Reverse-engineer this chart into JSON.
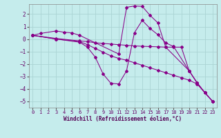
{
  "title": "",
  "xlabel": "Windchill (Refroidissement éolien,°C)",
  "ylabel": "",
  "background_color": "#c5ecec",
  "grid_color": "#aad4d4",
  "line_color": "#880088",
  "xlim": [
    -0.5,
    23.5
  ],
  "ylim": [
    -5.5,
    2.8
  ],
  "xticks": [
    0,
    1,
    2,
    3,
    4,
    5,
    6,
    7,
    8,
    9,
    10,
    11,
    12,
    13,
    14,
    15,
    16,
    17,
    18,
    19,
    20,
    21,
    22,
    23
  ],
  "yticks": [
    -5,
    -4,
    -3,
    -2,
    -1,
    0,
    1,
    2
  ],
  "lines": [
    {
      "x": [
        0,
        1,
        3,
        4,
        5,
        6,
        11,
        12,
        13,
        14,
        15,
        16,
        17,
        20,
        21,
        22,
        23
      ],
      "y": [
        0.3,
        0.45,
        0.65,
        0.55,
        0.5,
        0.3,
        -1.2,
        2.55,
        2.65,
        2.62,
        1.9,
        1.3,
        -0.65,
        -2.55,
        -3.5,
        -4.3,
        -5.0
      ]
    },
    {
      "x": [
        0,
        3,
        6,
        7,
        8,
        9,
        10,
        11,
        12,
        13,
        14,
        15,
        16,
        17,
        18,
        19,
        20,
        21,
        22,
        23
      ],
      "y": [
        0.3,
        0.05,
        -0.15,
        -0.2,
        -0.3,
        -0.35,
        -0.4,
        -0.45,
        -0.5,
        -0.55,
        -0.58,
        -0.6,
        -0.62,
        -0.65,
        -0.65,
        -0.65,
        -2.55,
        -3.5,
        -4.3,
        -5.0
      ]
    },
    {
      "x": [
        0,
        3,
        6,
        7,
        8,
        9,
        10,
        11,
        12,
        13,
        14,
        15,
        16,
        17,
        18,
        19,
        20,
        21,
        22,
        23
      ],
      "y": [
        0.3,
        0.0,
        -0.2,
        -0.45,
        -0.75,
        -1.05,
        -1.35,
        -1.55,
        -1.7,
        -1.9,
        -2.1,
        -2.3,
        -2.5,
        -2.7,
        -2.9,
        -3.1,
        -3.3,
        -3.6,
        -4.3,
        -5.0
      ]
    },
    {
      "x": [
        0,
        3,
        6,
        7,
        8,
        9,
        10,
        11,
        12,
        13,
        14,
        15,
        16,
        17,
        18,
        20,
        21,
        22,
        23
      ],
      "y": [
        0.3,
        0.0,
        -0.25,
        -0.65,
        -1.45,
        -2.8,
        -3.55,
        -3.6,
        -2.55,
        0.5,
        1.5,
        0.85,
        0.35,
        -0.3,
        -0.6,
        -2.55,
        -3.5,
        -4.3,
        -5.0
      ]
    }
  ]
}
